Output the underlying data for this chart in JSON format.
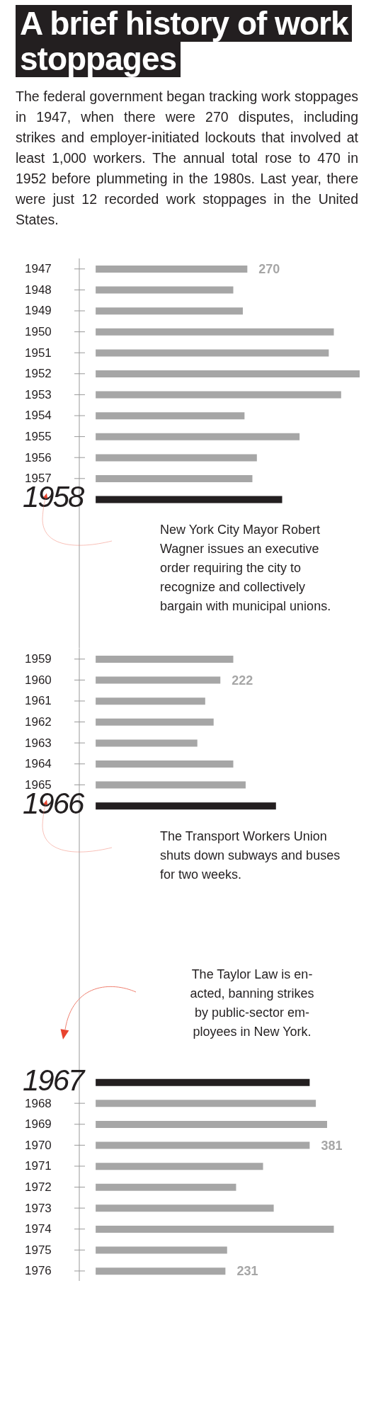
{
  "chart_data": [
    {
      "type": "bar",
      "orientation": "horizontal",
      "title": "A brief history of work stoppages",
      "subtitle": "The federal government began tracking work stoppages in 1947, when there were 270 disputes, including strikes and employer-initiated lockouts that involved at least 1,000 workers. The annual total rose to 470 in 1952 before plummeting in the 1980s. Last year, there were just 12 recorded work stoppages in the United States.",
      "categories": [
        "1947",
        "1948",
        "1949",
        "1950",
        "1951",
        "1952",
        "1953",
        "1954",
        "1955",
        "1956",
        "1957",
        "1958"
      ],
      "values": [
        270,
        245,
        262,
        424,
        415,
        470,
        437,
        265,
        363,
        287,
        279,
        332
      ],
      "colors": [
        "#a6a6a6",
        "#a6a6a6",
        "#a6a6a6",
        "#a6a6a6",
        "#a6a6a6",
        "#a6a6a6",
        "#a6a6a6",
        "#a6a6a6",
        "#a6a6a6",
        "#a6a6a6",
        "#a6a6a6",
        "#231f20"
      ],
      "value_labels": [
        "270",
        null,
        null,
        null,
        null,
        null,
        null,
        null,
        null,
        null,
        null,
        null
      ],
      "tick_labels": "y",
      "annotations": [
        "New York City Mayor Robert Wagner issues an executive order requiring the city to recognize and collectively bargain with municipal unions."
      ]
    },
    {
      "type": "bar",
      "orientation": "horizontal",
      "categories": [
        "1959",
        "1960",
        "1961",
        "1962",
        "1963",
        "1964",
        "1965",
        "1966"
      ],
      "values": [
        245,
        222,
        195,
        210,
        181,
        245,
        267,
        321
      ],
      "colors": [
        "#a6a6a6",
        "#a6a6a6",
        "#a6a6a6",
        "#a6a6a6",
        "#a6a6a6",
        "#a6a6a6",
        "#a6a6a6",
        "#231f20"
      ],
      "value_labels": [
        null,
        "222",
        null,
        null,
        null,
        null,
        null,
        null
      ],
      "tick_labels": "y",
      "annotations": [
        "The Transport Workers Union shuts down subways and buses for two weeks."
      ]
    },
    {
      "type": "bar",
      "orientation": "horizontal",
      "categories": [
        "1967",
        "1968",
        "1969",
        "1970",
        "1971",
        "1972",
        "1973",
        "1974",
        "1975",
        "1976"
      ],
      "values": [
        381,
        392,
        412,
        381,
        298,
        250,
        317,
        424,
        234,
        231
      ],
      "colors": [
        "#231f20",
        "#a6a6a6",
        "#a6a6a6",
        "#a6a6a6",
        "#a6a6a6",
        "#a6a6a6",
        "#a6a6a6",
        "#a6a6a6",
        "#a6a6a6",
        "#a6a6a6"
      ],
      "value_labels": [
        null,
        null,
        null,
        "381",
        null,
        null,
        null,
        null,
        null,
        "231"
      ],
      "tick_labels": "y",
      "annotations": [
        "The Taylor Law is en-\nacted, banning strikes\nby public-sector em-\nployees in New York."
      ]
    }
  ]
}
